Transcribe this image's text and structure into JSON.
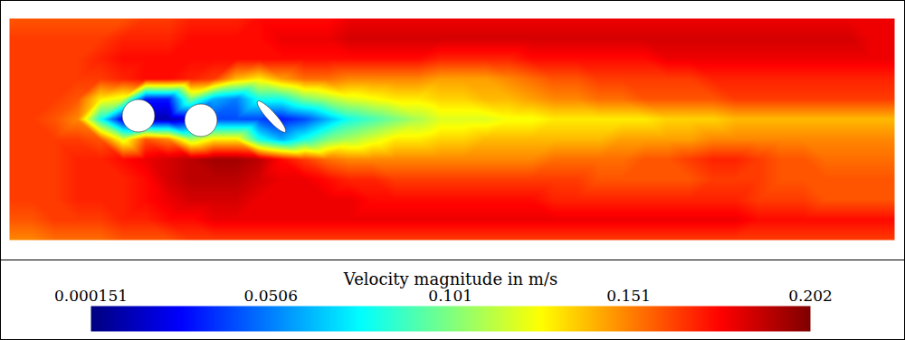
{
  "chart_data": {
    "type": "heatmap",
    "tick_labels": false,
    "cells": [
      [
        0.16,
        0.16,
        0.16,
        0.16,
        0.16,
        0.16,
        0.165,
        0.165,
        0.17,
        0.17,
        0.17,
        0.175,
        0.175,
        0.175,
        0.175,
        0.18,
        0.18,
        0.18,
        0.18,
        0.18,
        0.18,
        0.18,
        0.18,
        0.18,
        0.18,
        0.18,
        0.18,
        0.18,
        0.18,
        0.18,
        0.18,
        0.18,
        0.18,
        0.18,
        0.18,
        0.18,
        0.18,
        0.18,
        0.18,
        0.18
      ],
      [
        0.165,
        0.165,
        0.165,
        0.165,
        0.165,
        0.17,
        0.17,
        0.17,
        0.175,
        0.175,
        0.175,
        0.175,
        0.18,
        0.18,
        0.18,
        0.185,
        0.185,
        0.185,
        0.185,
        0.185,
        0.185,
        0.185,
        0.185,
        0.185,
        0.185,
        0.185,
        0.185,
        0.185,
        0.185,
        0.185,
        0.185,
        0.185,
        0.185,
        0.185,
        0.185,
        0.185,
        0.185,
        0.185,
        0.18,
        0.18
      ],
      [
        0.165,
        0.165,
        0.165,
        0.165,
        0.17,
        0.175,
        0.175,
        0.175,
        0.175,
        0.175,
        0.175,
        0.175,
        0.175,
        0.175,
        0.175,
        0.175,
        0.175,
        0.175,
        0.175,
        0.17,
        0.17,
        0.17,
        0.17,
        0.175,
        0.175,
        0.175,
        0.175,
        0.175,
        0.175,
        0.18,
        0.18,
        0.18,
        0.18,
        0.18,
        0.18,
        0.18,
        0.18,
        0.18,
        0.18,
        0.18
      ],
      [
        0.165,
        0.165,
        0.165,
        0.165,
        0.165,
        0.17,
        0.175,
        0.175,
        0.17,
        0.165,
        0.14,
        0.13,
        0.145,
        0.155,
        0.155,
        0.15,
        0.15,
        0.15,
        0.15,
        0.145,
        0.145,
        0.145,
        0.15,
        0.155,
        0.16,
        0.16,
        0.165,
        0.165,
        0.165,
        0.165,
        0.165,
        0.17,
        0.17,
        0.17,
        0.17,
        0.17,
        0.17,
        0.17,
        0.17,
        0.17
      ],
      [
        0.165,
        0.165,
        0.165,
        0.16,
        0.13,
        0.12,
        0.03,
        0.03,
        0.1,
        0.06,
        0.05,
        0.08,
        0.08,
        0.1,
        0.11,
        0.12,
        0.125,
        0.13,
        0.13,
        0.135,
        0.135,
        0.14,
        0.14,
        0.145,
        0.15,
        0.15,
        0.155,
        0.155,
        0.16,
        0.16,
        0.16,
        0.16,
        0.165,
        0.165,
        0.165,
        0.165,
        0.165,
        0.165,
        0.165,
        0.165
      ],
      [
        0.165,
        0.165,
        0.16,
        0.15,
        0.08,
        0.02,
        0.01,
        0.01,
        0.02,
        0.04,
        0.04,
        0.04,
        0.03,
        0.04,
        0.06,
        0.08,
        0.09,
        0.1,
        0.11,
        0.12,
        0.12,
        0.12,
        0.125,
        0.125,
        0.13,
        0.13,
        0.13,
        0.13,
        0.13,
        0.135,
        0.135,
        0.135,
        0.14,
        0.14,
        0.14,
        0.14,
        0.14,
        0.14,
        0.14,
        0.14
      ],
      [
        0.165,
        0.165,
        0.165,
        0.165,
        0.16,
        0.12,
        0.16,
        0.15,
        0.11,
        0.13,
        0.13,
        0.08,
        0.06,
        0.08,
        0.1,
        0.11,
        0.12,
        0.13,
        0.13,
        0.135,
        0.135,
        0.14,
        0.14,
        0.14,
        0.14,
        0.14,
        0.14,
        0.145,
        0.145,
        0.145,
        0.145,
        0.15,
        0.15,
        0.15,
        0.15,
        0.15,
        0.15,
        0.15,
        0.15,
        0.15
      ],
      [
        0.165,
        0.165,
        0.165,
        0.17,
        0.17,
        0.175,
        0.18,
        0.185,
        0.19,
        0.195,
        0.195,
        0.19,
        0.175,
        0.165,
        0.155,
        0.15,
        0.15,
        0.15,
        0.15,
        0.15,
        0.15,
        0.15,
        0.15,
        0.15,
        0.155,
        0.155,
        0.155,
        0.155,
        0.16,
        0.16,
        0.165,
        0.17,
        0.17,
        0.165,
        0.16,
        0.16,
        0.155,
        0.155,
        0.155,
        0.155
      ],
      [
        0.165,
        0.165,
        0.165,
        0.17,
        0.17,
        0.17,
        0.175,
        0.185,
        0.19,
        0.19,
        0.19,
        0.185,
        0.18,
        0.18,
        0.175,
        0.17,
        0.17,
        0.165,
        0.165,
        0.165,
        0.165,
        0.165,
        0.165,
        0.165,
        0.165,
        0.165,
        0.16,
        0.16,
        0.16,
        0.16,
        0.16,
        0.165,
        0.165,
        0.165,
        0.16,
        0.16,
        0.16,
        0.16,
        0.16,
        0.16
      ],
      [
        0.165,
        0.165,
        0.165,
        0.17,
        0.17,
        0.17,
        0.175,
        0.18,
        0.185,
        0.185,
        0.185,
        0.18,
        0.18,
        0.18,
        0.18,
        0.18,
        0.175,
        0.175,
        0.175,
        0.175,
        0.175,
        0.175,
        0.175,
        0.175,
        0.17,
        0.17,
        0.17,
        0.17,
        0.17,
        0.17,
        0.17,
        0.17,
        0.17,
        0.165,
        0.165,
        0.165,
        0.16,
        0.16,
        0.16,
        0.16
      ],
      [
        0.16,
        0.16,
        0.165,
        0.165,
        0.165,
        0.17,
        0.17,
        0.175,
        0.175,
        0.18,
        0.18,
        0.18,
        0.18,
        0.18,
        0.18,
        0.18,
        0.18,
        0.18,
        0.18,
        0.18,
        0.18,
        0.18,
        0.18,
        0.18,
        0.18,
        0.18,
        0.18,
        0.18,
        0.18,
        0.18,
        0.18,
        0.18,
        0.18,
        0.175,
        0.175,
        0.175,
        0.175,
        0.175,
        0.175,
        0.175
      ],
      [
        0.15,
        0.15,
        0.155,
        0.155,
        0.155,
        0.16,
        0.16,
        0.16,
        0.165,
        0.165,
        0.165,
        0.165,
        0.165,
        0.165,
        0.165,
        0.165,
        0.165,
        0.165,
        0.165,
        0.165,
        0.165,
        0.165,
        0.165,
        0.165,
        0.165,
        0.165,
        0.165,
        0.165,
        0.165,
        0.165,
        0.165,
        0.165,
        0.165,
        0.165,
        0.165,
        0.165,
        0.165,
        0.165,
        0.165,
        0.165
      ]
    ],
    "colorbar": {
      "label": "Velocity magnitude in m/s",
      "range": [
        0.000151,
        0.202
      ],
      "ticks": [
        0.000151,
        0.0506,
        0.101,
        0.151,
        0.202
      ]
    }
  }
}
